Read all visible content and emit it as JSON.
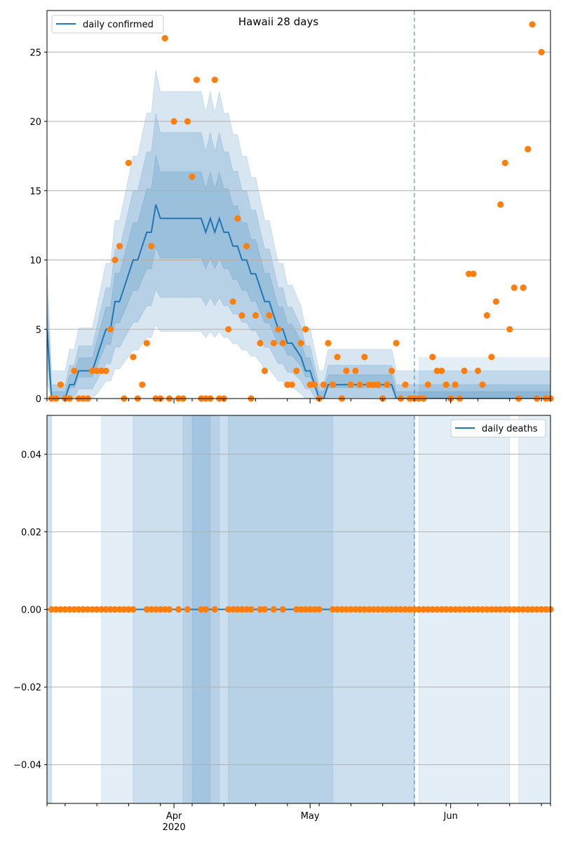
{
  "chart_data": [
    {
      "type": "line",
      "title": "Hawaii 28 days",
      "legend": "top-left",
      "grid": "horizontal",
      "ylim": [
        0,
        28
      ],
      "xlim": [
        "2020-03-04",
        "2020-06-23"
      ],
      "y_ticks": [
        0,
        5,
        10,
        15,
        20,
        25
      ],
      "y_tick_labels": [
        "0",
        "5",
        "10",
        "15",
        "20",
        "25"
      ],
      "forecast_start": "2020-05-24",
      "colors": {
        "line": "#1f77b4",
        "points": "#ff7f0e",
        "band": "#1f77b4",
        "grid": "#b0b0b0"
      },
      "series": [
        {
          "name": "daily confirmed",
          "kind": "line",
          "x": [
            "2020-03-04",
            "2020-03-05",
            "2020-03-06",
            "2020-03-07",
            "2020-03-08",
            "2020-03-09",
            "2020-03-10",
            "2020-03-11",
            "2020-03-12",
            "2020-03-13",
            "2020-03-14",
            "2020-03-15",
            "2020-03-16",
            "2020-03-17",
            "2020-03-18",
            "2020-03-19",
            "2020-03-20",
            "2020-03-21",
            "2020-03-22",
            "2020-03-23",
            "2020-03-24",
            "2020-03-25",
            "2020-03-26",
            "2020-03-27",
            "2020-03-28",
            "2020-03-29",
            "2020-03-30",
            "2020-03-31",
            "2020-04-01",
            "2020-04-02",
            "2020-04-03",
            "2020-04-04",
            "2020-04-05",
            "2020-04-06",
            "2020-04-07",
            "2020-04-08",
            "2020-04-09",
            "2020-04-10",
            "2020-04-11",
            "2020-04-12",
            "2020-04-13",
            "2020-04-14",
            "2020-04-15",
            "2020-04-16",
            "2020-04-17",
            "2020-04-18",
            "2020-04-19",
            "2020-04-20",
            "2020-04-21",
            "2020-04-22",
            "2020-04-23",
            "2020-04-24",
            "2020-04-25",
            "2020-04-26",
            "2020-04-27",
            "2020-04-28",
            "2020-04-29",
            "2020-04-30",
            "2020-05-01",
            "2020-05-02",
            "2020-05-03",
            "2020-05-04",
            "2020-05-05",
            "2020-05-06",
            "2020-05-07",
            "2020-05-08",
            "2020-05-09",
            "2020-05-10",
            "2020-05-11",
            "2020-05-12",
            "2020-05-13",
            "2020-05-14",
            "2020-05-15",
            "2020-05-16",
            "2020-05-17",
            "2020-05-18",
            "2020-05-19",
            "2020-05-20",
            "2020-05-21",
            "2020-05-22",
            "2020-05-23",
            "2020-05-24",
            "2020-05-25",
            "2020-05-26",
            "2020-05-27",
            "2020-05-28",
            "2020-05-29",
            "2020-05-30",
            "2020-05-31",
            "2020-06-01",
            "2020-06-02",
            "2020-06-03",
            "2020-06-04",
            "2020-06-05",
            "2020-06-06",
            "2020-06-07",
            "2020-06-08",
            "2020-06-09",
            "2020-06-10",
            "2020-06-11",
            "2020-06-12",
            "2020-06-13",
            "2020-06-14",
            "2020-06-15",
            "2020-06-16",
            "2020-06-17",
            "2020-06-18",
            "2020-06-19",
            "2020-06-20",
            "2020-06-21",
            "2020-06-22",
            "2020-06-23"
          ],
          "y": [
            5,
            0,
            0,
            0,
            0,
            1,
            1,
            2,
            2,
            2,
            2,
            3,
            4,
            5,
            5,
            7,
            7,
            8,
            9,
            10,
            10,
            11,
            12,
            12,
            14,
            13,
            13,
            13,
            13,
            13,
            13,
            13,
            13,
            13,
            13,
            12,
            13,
            12,
            13,
            12,
            12,
            11,
            11,
            10,
            10,
            9,
            9,
            8,
            7,
            7,
            6,
            5,
            5,
            4,
            4,
            3.5,
            3,
            2,
            2,
            1,
            0,
            0,
            1,
            1,
            1,
            1,
            1,
            1,
            1,
            1,
            1,
            1,
            1,
            1,
            1,
            1,
            1,
            0,
            0,
            0,
            0,
            0,
            0,
            0,
            0,
            0,
            0,
            0,
            0,
            0,
            0,
            0,
            0,
            0,
            0,
            0,
            0,
            0,
            0,
            0,
            0,
            0,
            0,
            0,
            0,
            0,
            0,
            0,
            0,
            0,
            0,
            0
          ]
        },
        {
          "name": "",
          "kind": "scatter",
          "x": [
            "2020-03-05",
            "2020-03-06",
            "2020-03-07",
            "2020-03-08",
            "2020-03-09",
            "2020-03-10",
            "2020-03-11",
            "2020-03-12",
            "2020-03-13",
            "2020-03-14",
            "2020-03-15",
            "2020-03-16",
            "2020-03-17",
            "2020-03-18",
            "2020-03-19",
            "2020-03-20",
            "2020-03-21",
            "2020-03-22",
            "2020-03-23",
            "2020-03-24",
            "2020-03-25",
            "2020-03-26",
            "2020-03-27",
            "2020-03-28",
            "2020-03-29",
            "2020-03-30",
            "2020-03-31",
            "2020-04-01",
            "2020-04-02",
            "2020-04-03",
            "2020-04-04",
            "2020-04-05",
            "2020-04-06",
            "2020-04-07",
            "2020-04-08",
            "2020-04-09",
            "2020-04-10",
            "2020-04-11",
            "2020-04-12",
            "2020-04-13",
            "2020-04-14",
            "2020-04-15",
            "2020-04-16",
            "2020-04-17",
            "2020-04-18",
            "2020-04-19",
            "2020-04-20",
            "2020-04-21",
            "2020-04-22",
            "2020-04-23",
            "2020-04-24",
            "2020-04-25",
            "2020-04-26",
            "2020-04-27",
            "2020-04-28",
            "2020-04-29",
            "2020-04-30",
            "2020-05-01",
            "2020-05-02",
            "2020-05-03",
            "2020-05-04",
            "2020-05-05",
            "2020-05-06",
            "2020-05-07",
            "2020-05-08",
            "2020-05-09",
            "2020-05-10",
            "2020-05-11",
            "2020-05-12",
            "2020-05-13",
            "2020-05-14",
            "2020-05-15",
            "2020-05-16",
            "2020-05-17",
            "2020-05-18",
            "2020-05-19",
            "2020-05-20",
            "2020-05-21",
            "2020-05-22",
            "2020-05-23",
            "2020-05-24",
            "2020-05-25",
            "2020-05-26",
            "2020-05-27",
            "2020-05-28",
            "2020-05-29",
            "2020-05-30",
            "2020-05-31",
            "2020-06-01",
            "2020-06-02",
            "2020-06-03",
            "2020-06-04",
            "2020-06-05",
            "2020-06-06",
            "2020-06-07",
            "2020-06-08",
            "2020-06-09",
            "2020-06-10",
            "2020-06-11",
            "2020-06-12",
            "2020-06-13",
            "2020-06-14",
            "2020-06-15",
            "2020-06-16",
            "2020-06-17",
            "2020-06-18",
            "2020-06-19",
            "2020-06-20",
            "2020-06-21",
            "2020-06-22",
            "2020-06-23"
          ],
          "y": [
            0,
            0,
            1,
            0,
            0,
            2,
            0,
            0,
            0,
            2,
            2,
            2,
            2,
            5,
            10,
            11,
            0,
            17,
            3,
            0,
            1,
            4,
            11,
            0,
            0,
            26,
            0,
            20,
            0,
            0,
            20,
            16,
            23,
            0,
            0,
            0,
            23,
            0,
            0,
            5,
            7,
            13,
            6,
            11,
            0,
            6,
            4,
            2,
            6,
            4,
            5,
            4,
            1,
            1,
            2,
            4,
            5,
            1,
            1,
            0,
            1,
            4,
            1,
            3,
            0,
            2,
            1,
            2,
            1,
            3,
            1,
            1,
            1,
            0,
            1,
            2,
            4,
            0,
            1,
            0,
            0,
            0,
            0,
            1,
            3,
            2,
            2,
            1,
            0,
            1,
            0,
            2,
            9,
            9,
            2,
            1,
            6,
            3,
            7,
            14,
            17,
            5,
            8,
            0,
            8,
            18,
            27,
            0,
            25,
            0,
            0
          ]
        }
      ]
    },
    {
      "type": "line",
      "title": "",
      "legend": "top-right",
      "grid": "horizontal",
      "ylim": [
        -0.05,
        0.05
      ],
      "xlim": [
        "2020-03-04",
        "2020-06-23"
      ],
      "y_ticks": [
        0.04,
        0.02,
        0.0,
        -0.02,
        -0.04
      ],
      "y_tick_labels": [
        "0.04",
        "0.02",
        "0.00",
        "−0.02",
        "−0.04"
      ],
      "x_tick_labels": [
        {
          "date": "2020-04-01",
          "label": "Apr",
          "sublabel": "2020"
        },
        {
          "date": "2020-05-01",
          "label": "May",
          "sublabel": ""
        },
        {
          "date": "2020-06-01",
          "label": "Jun",
          "sublabel": ""
        }
      ],
      "forecast_start": "2020-05-24",
      "colors": {
        "line": "#1f77b4",
        "points": "#ff7f0e",
        "band": "#1f77b4",
        "grid": "#b0b0b0"
      },
      "series": [
        {
          "name": "daily deaths",
          "kind": "line",
          "x": [
            "2020-03-04",
            "2020-06-23"
          ],
          "y": [
            0,
            0
          ]
        },
        {
          "name": "",
          "kind": "scatter",
          "x": [
            "2020-03-05",
            "2020-03-06",
            "2020-03-07",
            "2020-03-08",
            "2020-03-09",
            "2020-03-10",
            "2020-03-11",
            "2020-03-12",
            "2020-03-13",
            "2020-03-14",
            "2020-03-15",
            "2020-03-16",
            "2020-03-17",
            "2020-03-18",
            "2020-03-19",
            "2020-03-20",
            "2020-03-21",
            "2020-03-22",
            "2020-03-23",
            "2020-03-26",
            "2020-03-27",
            "2020-03-28",
            "2020-03-29",
            "2020-03-30",
            "2020-03-31",
            "2020-04-02",
            "2020-04-04",
            "2020-04-07",
            "2020-04-08",
            "2020-04-10",
            "2020-04-13",
            "2020-04-14",
            "2020-04-15",
            "2020-04-16",
            "2020-04-17",
            "2020-04-18",
            "2020-04-20",
            "2020-04-21",
            "2020-04-23",
            "2020-04-25",
            "2020-04-28",
            "2020-04-29",
            "2020-04-30",
            "2020-05-01",
            "2020-05-02",
            "2020-05-03",
            "2020-05-06",
            "2020-05-07",
            "2020-05-08",
            "2020-05-09",
            "2020-05-10",
            "2020-05-11",
            "2020-05-12",
            "2020-05-13",
            "2020-05-14",
            "2020-05-15",
            "2020-05-16",
            "2020-05-17",
            "2020-05-18",
            "2020-05-19",
            "2020-05-20",
            "2020-05-21",
            "2020-05-22",
            "2020-05-23",
            "2020-05-24",
            "2020-05-25",
            "2020-05-26",
            "2020-05-27",
            "2020-05-28",
            "2020-05-29",
            "2020-05-30",
            "2020-05-31",
            "2020-06-01",
            "2020-06-02",
            "2020-06-03",
            "2020-06-04",
            "2020-06-05",
            "2020-06-06",
            "2020-06-07",
            "2020-06-08",
            "2020-06-09",
            "2020-06-10",
            "2020-06-11",
            "2020-06-12",
            "2020-06-13",
            "2020-06-14",
            "2020-06-15",
            "2020-06-16",
            "2020-06-17",
            "2020-06-18",
            "2020-06-19",
            "2020-06-20",
            "2020-06-21",
            "2020-06-22",
            "2020-06-23"
          ],
          "y": [
            0,
            0,
            0,
            0,
            0,
            0,
            0,
            0,
            0,
            0,
            0,
            0,
            0,
            0,
            0,
            0,
            0,
            0,
            0,
            0,
            0,
            0,
            0,
            0,
            0,
            0,
            0,
            0,
            0,
            0,
            0,
            0,
            0,
            0,
            0,
            0,
            0,
            0,
            0,
            0,
            0,
            0,
            0,
            0,
            0,
            0,
            0,
            0,
            0,
            0,
            0,
            0,
            0,
            0,
            0,
            0,
            0,
            0,
            0,
            0,
            0,
            0,
            0,
            0,
            0,
            0,
            0,
            0,
            0,
            0,
            0,
            0,
            0,
            0,
            0,
            0,
            0,
            0,
            0,
            0,
            0,
            0,
            0,
            0,
            0,
            0,
            0,
            0,
            0,
            0,
            0,
            0,
            0,
            0,
            0
          ]
        }
      ]
    }
  ]
}
